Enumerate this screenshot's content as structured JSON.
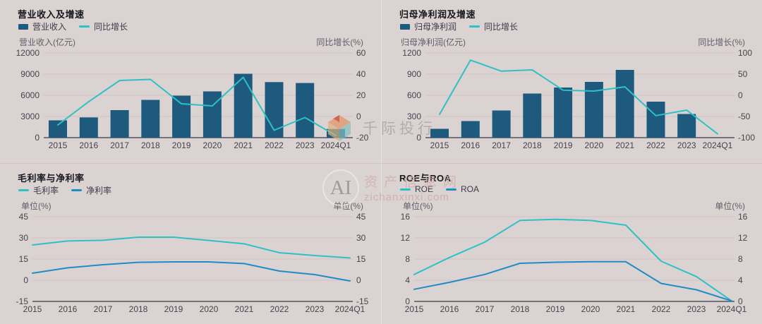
{
  "watermarks": {
    "brand_text": "千际投行",
    "ai_text": "AI",
    "site_name": "资产信息网",
    "site_url": "zichanxinxi.com"
  },
  "colors": {
    "background": "#dbd3d2",
    "bar": "#1d5a7e",
    "teal_line": "#2fc0c7",
    "blue_line": "#1f8cc6",
    "title_text": "#17171f",
    "tick_text": "#45434e",
    "unit_text": "#615e69",
    "gridline": "#ccc3c2",
    "axis_line": "#71747f"
  },
  "chart_data": [
    {
      "type": "bar+line",
      "title": "营业收入及增速",
      "categories": [
        "2015",
        "2016",
        "2017",
        "2018",
        "2019",
        "2020",
        "2021",
        "2022",
        "2023",
        "2024Q1"
      ],
      "series": [
        {
          "key": "revenue",
          "name": "营业收入",
          "type": "bar",
          "axis": "left",
          "color": "#1d5a7e",
          "values": [
            2450,
            2870,
            3900,
            5350,
            5950,
            6550,
            9050,
            7870,
            7740,
            1230
          ]
        },
        {
          "key": "yoy-growth",
          "name": "同比增长",
          "type": "line",
          "axis": "right",
          "color": "#2fc0c7",
          "values": [
            -8,
            14,
            34,
            35,
            12,
            10,
            37,
            -13,
            -1,
            -18
          ]
        }
      ],
      "left_axis": {
        "label": "营业收入(亿元)",
        "min": 0,
        "max": 12000,
        "ticks": [
          12000,
          9000,
          6000,
          3000,
          0
        ]
      },
      "right_axis": {
        "label": "同比增长(%)",
        "min": -20,
        "max": 60,
        "ticks": [
          60,
          40,
          20,
          0,
          -20
        ]
      },
      "grid": true,
      "legend_position": "top-left"
    },
    {
      "type": "bar+line",
      "title": "归母净利润及增速",
      "categories": [
        "2015",
        "2016",
        "2017",
        "2018",
        "2019",
        "2020",
        "2021",
        "2022",
        "2023",
        "2024Q1"
      ],
      "series": [
        {
          "key": "net-profit",
          "name": "归母净利润",
          "type": "bar",
          "axis": "left",
          "color": "#1d5a7e",
          "values": [
            125,
            235,
            385,
            625,
            710,
            790,
            960,
            510,
            335,
            0
          ]
        },
        {
          "key": "yoy-growth",
          "name": "同比增长",
          "type": "line",
          "axis": "right",
          "color": "#2fc0c7",
          "values": [
            -45,
            83,
            57,
            60,
            12,
            10,
            20,
            -48,
            -35,
            -91
          ]
        }
      ],
      "left_axis": {
        "label": "归母净利润(亿元)",
        "min": 0,
        "max": 1200,
        "ticks": [
          1200,
          900,
          600,
          300,
          0
        ]
      },
      "right_axis": {
        "label": "同比增长(%)",
        "min": -100,
        "max": 100,
        "ticks": [
          100,
          50,
          0,
          -50,
          -100
        ]
      },
      "grid": true,
      "legend_position": "top-left"
    },
    {
      "type": "line",
      "title": "毛利率与净利率",
      "categories": [
        "2015",
        "2016",
        "2017",
        "2018",
        "2019",
        "2020",
        "2021",
        "2022",
        "2023",
        "2024Q1"
      ],
      "series": [
        {
          "key": "gross-margin",
          "name": "毛利率",
          "type": "line",
          "axis": "left",
          "color": "#2fc0c7",
          "values": [
            25,
            27.8,
            28.3,
            30.5,
            30.5,
            28.2,
            25.8,
            19.5,
            17.5,
            15.8
          ]
        },
        {
          "key": "net-margin",
          "name": "净利率",
          "type": "line",
          "axis": "left",
          "color": "#1f8cc6",
          "values": [
            5,
            8.8,
            11,
            12.7,
            13,
            13,
            11.8,
            6.5,
            4,
            -0.5
          ]
        }
      ],
      "left_axis": {
        "label": "单位(%)",
        "min": -15,
        "max": 45,
        "ticks": [
          45,
          30,
          15,
          0,
          -15
        ]
      },
      "right_axis": {
        "label": "单位(%)",
        "min": -15,
        "max": 45,
        "ticks": [
          45,
          30,
          15,
          0,
          -15
        ]
      },
      "grid": true,
      "legend_position": "top-left"
    },
    {
      "type": "line",
      "title": "ROE与ROA",
      "categories": [
        "2015",
        "2016",
        "2017",
        "2018",
        "2019",
        "2020",
        "2021",
        "2022",
        "2023",
        "2024Q1"
      ],
      "series": [
        {
          "key": "roe",
          "name": "ROE",
          "type": "line",
          "axis": "left",
          "color": "#2fc0c7",
          "values": [
            5.1,
            8.3,
            11.2,
            15.3,
            15.5,
            15.3,
            14.4,
            7.6,
            4.7,
            0.1
          ]
        },
        {
          "key": "roa",
          "name": "ROA",
          "type": "line",
          "axis": "left",
          "color": "#1f8cc6",
          "values": [
            2.3,
            3.6,
            5.1,
            7.2,
            7.4,
            7.5,
            7.5,
            3.4,
            2.2,
            0.1
          ]
        }
      ],
      "left_axis": {
        "label": "单位(%)",
        "min": 0,
        "max": 16,
        "ticks": [
          16,
          12,
          8,
          4,
          0
        ]
      },
      "right_axis": {
        "label": "单位(%)",
        "min": 0,
        "max": 16,
        "ticks": [
          16,
          12,
          8,
          4,
          0
        ]
      },
      "grid": true,
      "legend_position": "top-left"
    }
  ]
}
